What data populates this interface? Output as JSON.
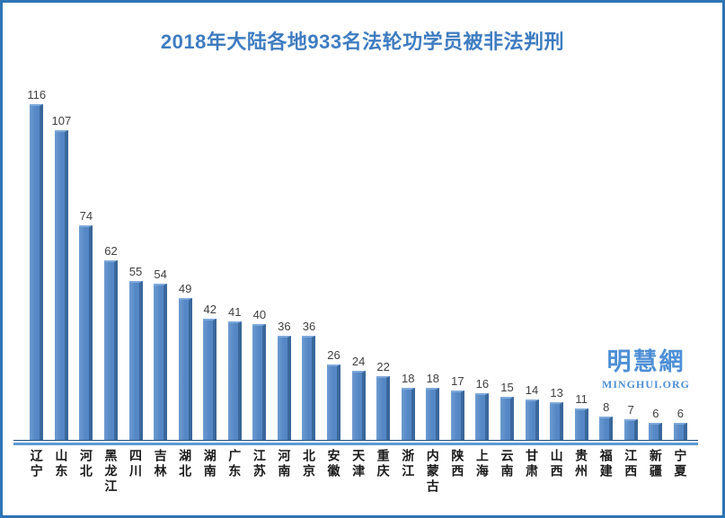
{
  "title": "2018年大陆各地933名法轮功学员被非法判刑",
  "watermark": {
    "cjk": "明慧網",
    "latin": "MINGHUI.ORG"
  },
  "colors": {
    "border": "#2E75B6",
    "title": "#3E7CC1",
    "bar_face": "#5587C5",
    "bar_face_light": "#6D9BD1",
    "bar_edge": "#3A689C",
    "bar_top": "#7FA9DB",
    "axis_dark": "#1F4E79",
    "axis_light": "#5B9BD5",
    "value_label": "#3F3F3F",
    "category_label": "#1A1A1A",
    "watermark": "#4D8FD6"
  },
  "chart_data": {
    "type": "bar",
    "title": "2018年大陆各地933名法轮功学员被非法判刑",
    "total": 933,
    "categories": [
      "辽宁",
      "山东",
      "河北",
      "黑龙江",
      "四川",
      "吉林",
      "湖北",
      "湖南",
      "广东",
      "江苏",
      "河南",
      "北京",
      "安徽",
      "天津",
      "重庆",
      "浙江",
      "内蒙古",
      "陕西",
      "上海",
      "云南",
      "甘肃",
      "山西",
      "贵州",
      "福建",
      "江西",
      "新疆",
      "宁夏"
    ],
    "values": [
      116,
      107,
      74,
      62,
      55,
      54,
      49,
      42,
      41,
      40,
      36,
      36,
      26,
      24,
      22,
      18,
      18,
      17,
      16,
      15,
      14,
      13,
      11,
      8,
      7,
      6,
      6
    ],
    "xlabel": "",
    "ylabel": "",
    "ylim": [
      0,
      125
    ],
    "grid": false,
    "legend_position": "none",
    "data_labels": true,
    "category_label_orientation": "vertical"
  }
}
